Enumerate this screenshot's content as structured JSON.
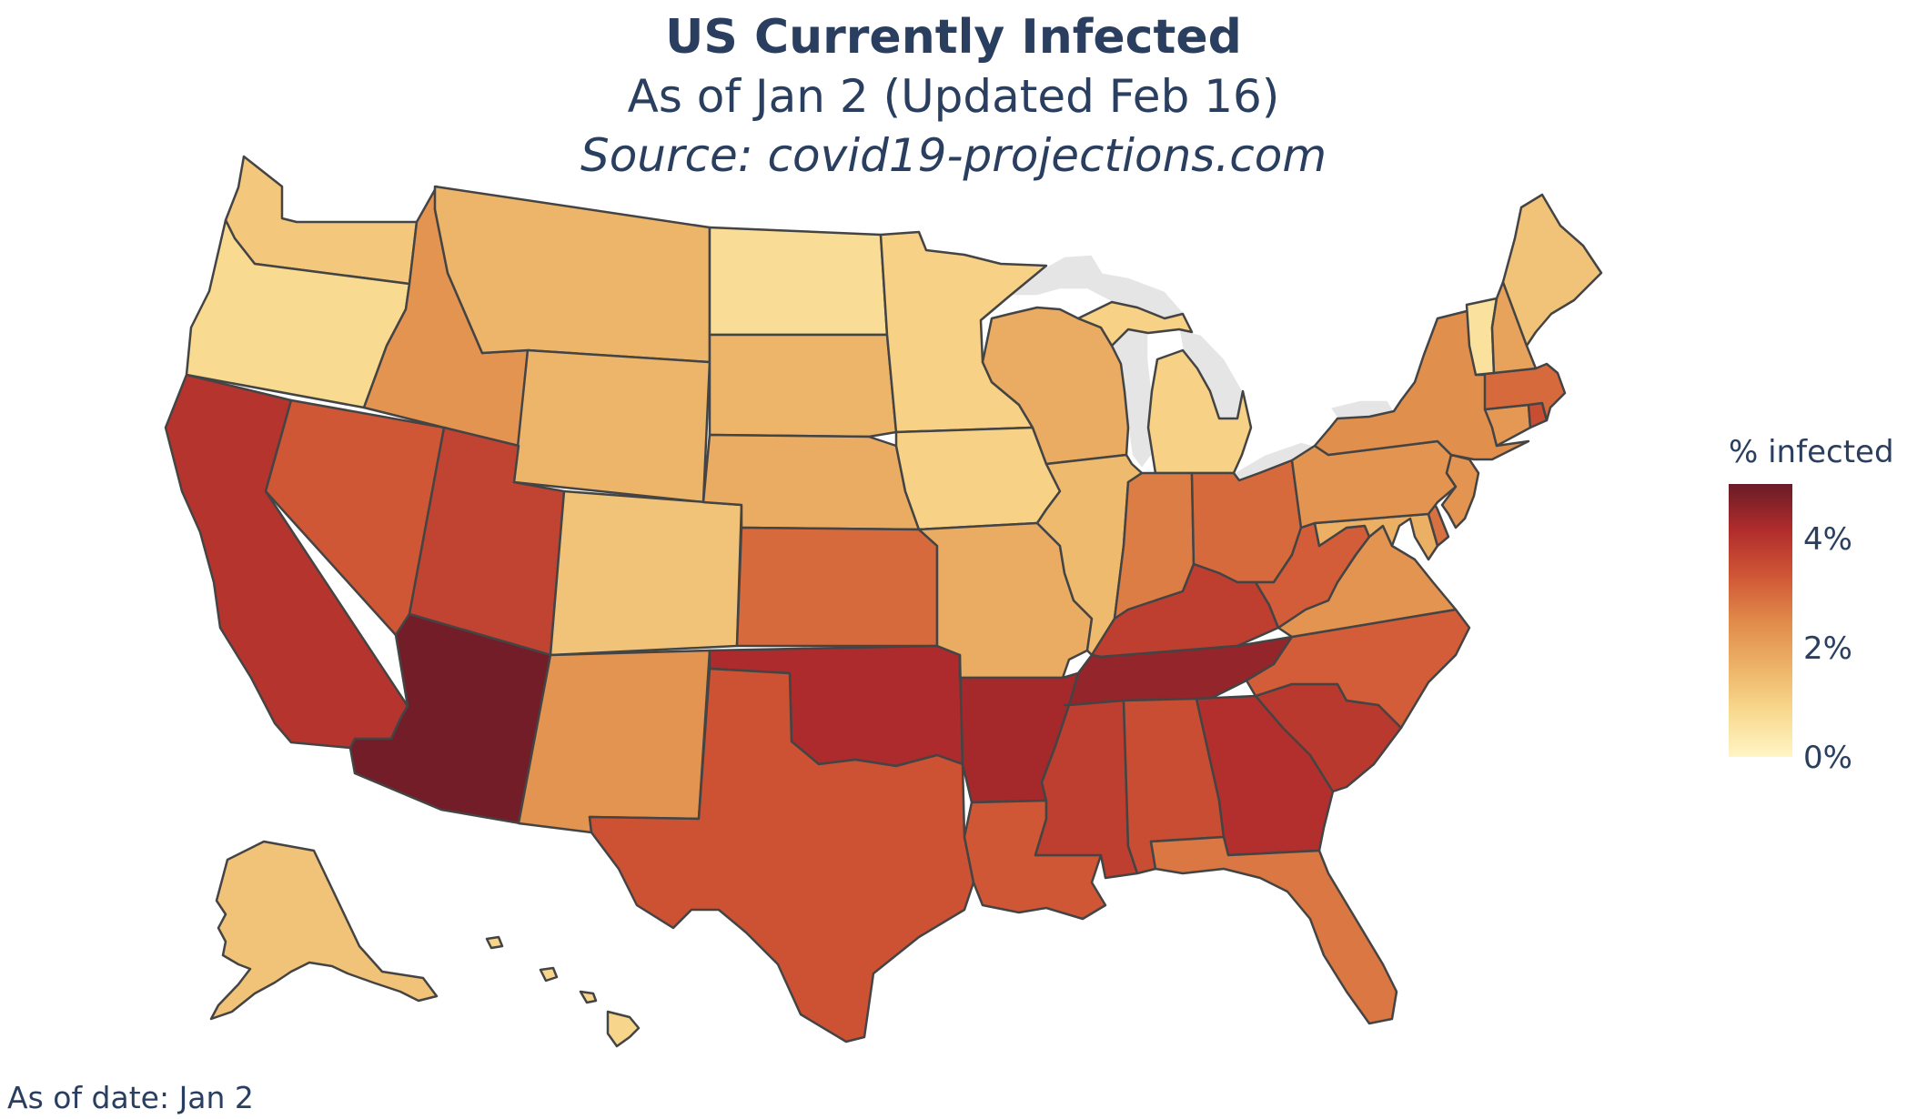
{
  "header": {
    "title": "US Currently Infected",
    "subtitle": "As of Jan 2 (Updated Feb 16)",
    "source": "Source: covid19-projections.com"
  },
  "legend": {
    "title": "% infected",
    "ticks": [
      {
        "value": 4,
        "label": "4%"
      },
      {
        "value": 2,
        "label": "2%"
      },
      {
        "value": 0,
        "label": "0%"
      }
    ],
    "range": [
      0,
      5
    ],
    "colorscale": [
      "#fff5c6",
      "#f8d98e",
      "#ecb266",
      "#e08a4a",
      "#cf5535",
      "#b02c2c",
      "#6a1b27"
    ]
  },
  "footer": {
    "date_label": "As of date: Jan 2"
  },
  "map_data": {
    "metric": "% infected",
    "states": [
      {
        "code": "WA",
        "value": 1.2
      },
      {
        "code": "OR",
        "value": 0.8
      },
      {
        "code": "CA",
        "value": 4.0
      },
      {
        "code": "NV",
        "value": 3.3
      },
      {
        "code": "ID",
        "value": 2.3
      },
      {
        "code": "MT",
        "value": 1.6
      },
      {
        "code": "WY",
        "value": 1.6
      },
      {
        "code": "UT",
        "value": 3.7
      },
      {
        "code": "AZ",
        "value": 4.9
      },
      {
        "code": "CO",
        "value": 1.3
      },
      {
        "code": "NM",
        "value": 2.3
      },
      {
        "code": "ND",
        "value": 0.7
      },
      {
        "code": "SD",
        "value": 1.6
      },
      {
        "code": "NE",
        "value": 1.8
      },
      {
        "code": "KS",
        "value": 3.0
      },
      {
        "code": "OK",
        "value": 4.2
      },
      {
        "code": "TX",
        "value": 3.4
      },
      {
        "code": "MN",
        "value": 1.0
      },
      {
        "code": "IA",
        "value": 1.0
      },
      {
        "code": "MO",
        "value": 1.8
      },
      {
        "code": "AR",
        "value": 4.3
      },
      {
        "code": "LA",
        "value": 3.3
      },
      {
        "code": "WI",
        "value": 1.8
      },
      {
        "code": "IL",
        "value": 1.5
      },
      {
        "code": "MI",
        "value": 1.0
      },
      {
        "code": "IN",
        "value": 2.7
      },
      {
        "code": "OH",
        "value": 3.0
      },
      {
        "code": "KY",
        "value": 3.8
      },
      {
        "code": "TN",
        "value": 4.5
      },
      {
        "code": "MS",
        "value": 3.8
      },
      {
        "code": "AL",
        "value": 3.5
      },
      {
        "code": "GA",
        "value": 4.1
      },
      {
        "code": "FL",
        "value": 2.8
      },
      {
        "code": "SC",
        "value": 3.9
      },
      {
        "code": "NC",
        "value": 3.2
      },
      {
        "code": "VA",
        "value": 2.3
      },
      {
        "code": "WV",
        "value": 3.2
      },
      {
        "code": "MD",
        "value": 1.7
      },
      {
        "code": "DE",
        "value": 2.9
      },
      {
        "code": "PA",
        "value": 2.3
      },
      {
        "code": "NJ",
        "value": 2.3
      },
      {
        "code": "NY",
        "value": 2.4
      },
      {
        "code": "CT",
        "value": 2.2
      },
      {
        "code": "RI",
        "value": 3.5
      },
      {
        "code": "MA",
        "value": 3.0
      },
      {
        "code": "VT",
        "value": 0.6
      },
      {
        "code": "NH",
        "value": 2.0
      },
      {
        "code": "ME",
        "value": 1.3
      },
      {
        "code": "AK",
        "value": 1.3
      },
      {
        "code": "HI",
        "value": 0.9
      }
    ]
  }
}
